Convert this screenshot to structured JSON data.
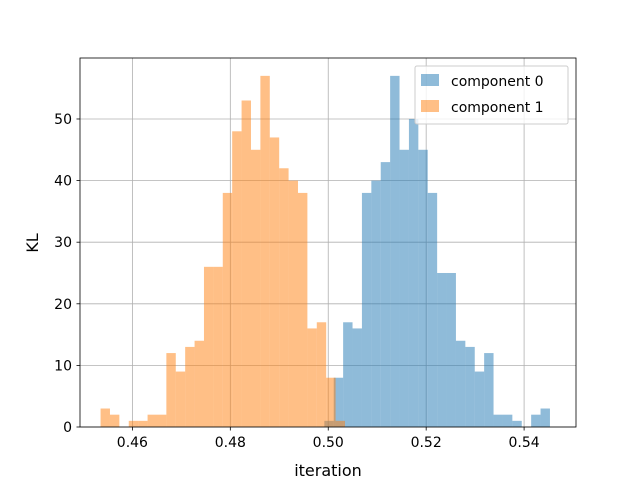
{
  "chart_data": {
    "type": "histogram",
    "xlabel": "iteration",
    "ylabel": "KL",
    "xlim": [
      0.4493,
      0.5506
    ],
    "ylim": [
      0,
      59.9
    ],
    "grid": true,
    "legend_position": "top-right",
    "xticks": [
      0.46,
      0.48,
      0.5,
      0.52,
      0.54
    ],
    "xtick_labels": [
      "0.46",
      "0.48",
      "0.50",
      "0.52",
      "0.54"
    ],
    "yticks": [
      0,
      10,
      20,
      30,
      40,
      50
    ],
    "ytick_labels": [
      "0",
      "10",
      "20",
      "30",
      "40",
      "50"
    ],
    "series": [
      {
        "name": "component 0",
        "color": "#1f77b4",
        "opacity": 0.5,
        "bin_start": 0.4992,
        "bin_width": 0.00192,
        "counts": [
          1,
          8,
          17,
          16,
          38,
          40,
          43,
          57,
          45,
          50,
          45,
          38,
          25,
          25,
          14,
          13,
          9,
          12,
          2,
          2,
          1,
          0,
          2,
          3
        ]
      },
      {
        "name": "component 1",
        "color": "#ff7f0e",
        "opacity": 0.5,
        "bin_start": 0.4535,
        "bin_width": 0.00192,
        "counts": [
          3,
          2,
          0,
          1,
          1,
          2,
          2,
          12,
          9,
          13,
          14,
          26,
          26,
          38,
          48,
          53,
          45,
          57,
          47,
          42,
          40,
          38,
          16,
          17,
          8,
          1
        ]
      }
    ]
  }
}
